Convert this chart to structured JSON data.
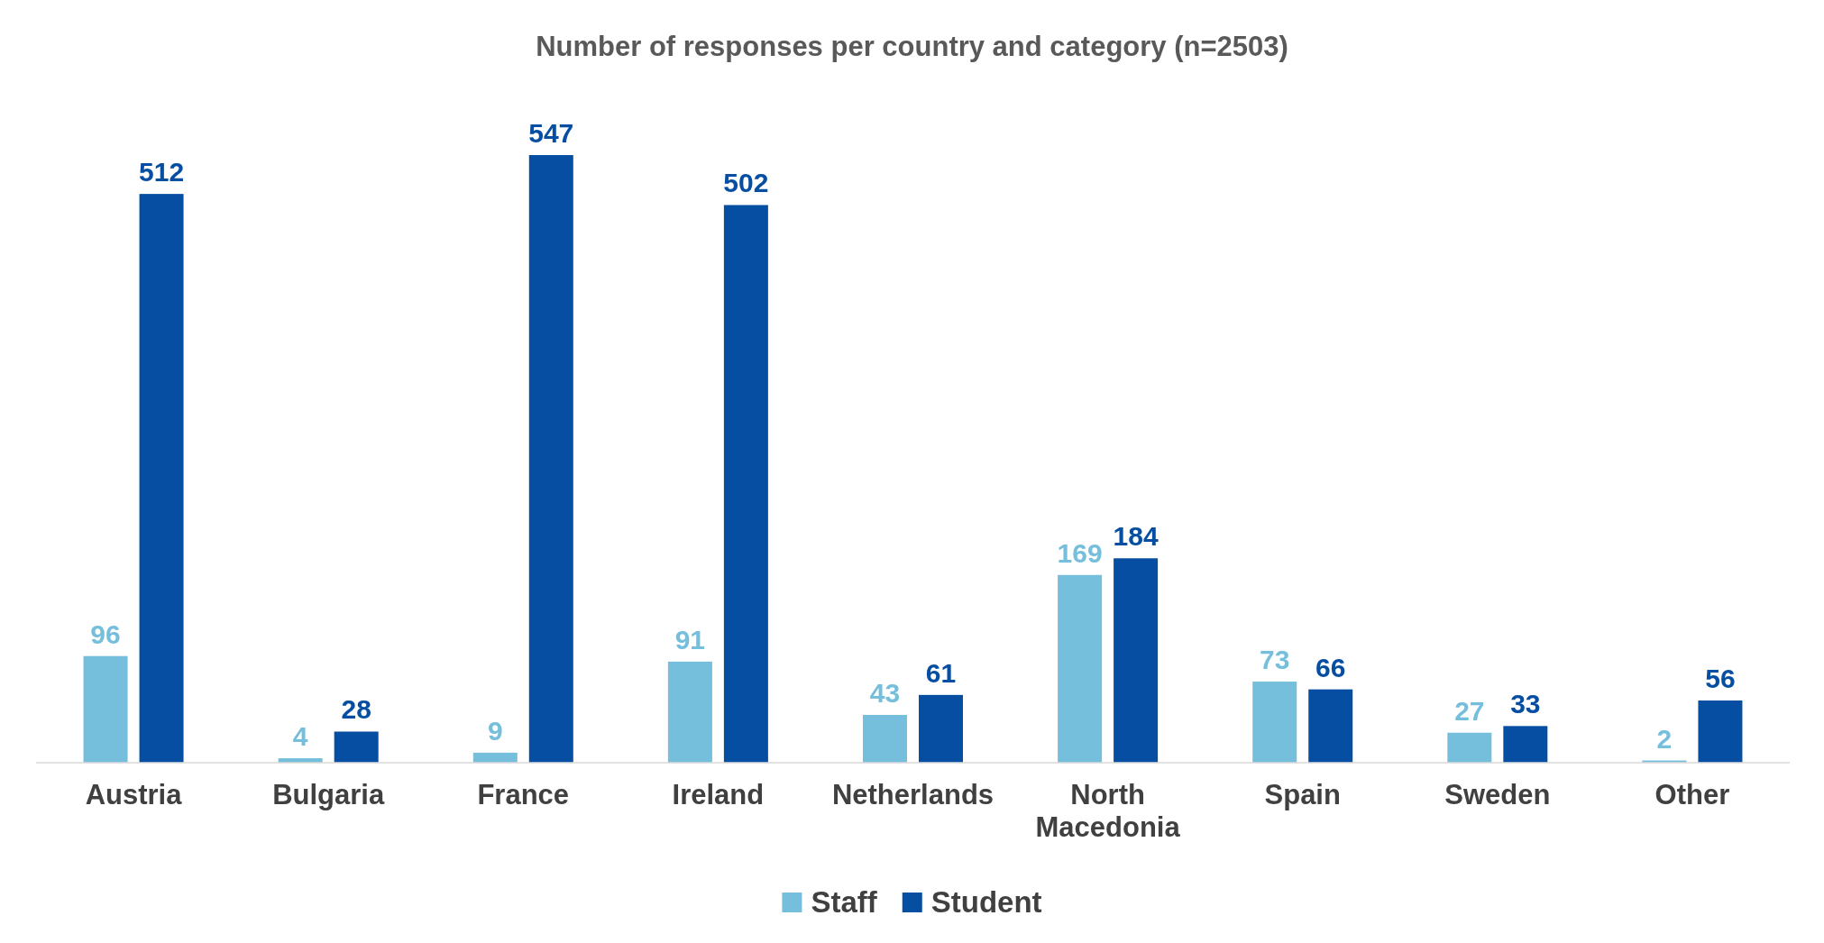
{
  "chart_data": {
    "type": "bar",
    "title": "Number of responses per country and category (n=2503)",
    "categories": [
      "Austria",
      "Bulgaria",
      "France",
      "Ireland",
      "Netherlands",
      "North Macedonia",
      "Spain",
      "Sweden",
      "Other"
    ],
    "series": [
      {
        "name": "Staff",
        "color": "#75bfdc",
        "values": [
          96,
          4,
          9,
          91,
          43,
          169,
          73,
          27,
          2
        ]
      },
      {
        "name": "Student",
        "color": "#054ea2",
        "values": [
          512,
          28,
          547,
          502,
          61,
          184,
          66,
          33,
          56
        ]
      }
    ],
    "data_labels": true,
    "legend": "bottom"
  }
}
